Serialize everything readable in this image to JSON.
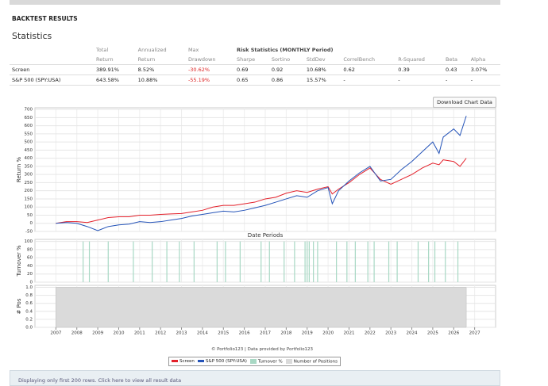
{
  "header": {
    "title": "BACKTEST RESULTS",
    "section": "Statistics"
  },
  "table": {
    "group_header": [
      "Total",
      "Annualized",
      "Max",
      "Risk Statistics (MONTHLY Period)"
    ],
    "header": [
      "Return",
      "Return",
      "Drawdown",
      "Sharpe",
      "Sortino",
      "StdDev",
      "CorrelBench",
      "R-Squared",
      "Beta",
      "Alpha"
    ],
    "rows": [
      [
        "Screen",
        "389.91%",
        "8.52%",
        "-30.62%",
        "0.69",
        "0.92",
        "10.68%",
        "0.62",
        "0.39",
        "0.43",
        "3.07%"
      ],
      [
        "S&P 500 (SPY:USA)",
        "643.58%",
        "10.88%",
        "-55.19%",
        "0.65",
        "0.86",
        "15.57%",
        "-",
        "-",
        "-",
        "-"
      ]
    ]
  },
  "button": "Download Chart Data",
  "chart_data": [
    {
      "type": "line",
      "ylabel": "Return %",
      "xlabel": "Date Periods",
      "xlim": [
        2006,
        2028
      ],
      "ylim": [
        -50,
        710
      ],
      "yticks": [
        -50,
        0,
        50,
        100,
        150,
        200,
        250,
        300,
        350,
        400,
        450,
        500,
        550,
        600,
        650,
        700
      ],
      "grid": true,
      "x": [
        2007,
        2007.5,
        2008,
        2008.5,
        2009,
        2009.5,
        2010,
        2010.5,
        2011,
        2011.5,
        2012,
        2012.5,
        2013,
        2013.5,
        2014,
        2014.5,
        2015,
        2015.5,
        2016,
        2016.5,
        2017,
        2017.5,
        2018,
        2018.5,
        2019,
        2019.5,
        2020,
        2020.2,
        2020.5,
        2021,
        2021.5,
        2022,
        2022.5,
        2023,
        2023.5,
        2024,
        2024.5,
        2025,
        2025.3,
        2025.5,
        2026,
        2026.3,
        2026.6
      ],
      "series": [
        {
          "name": "Screen",
          "color": "#e3202a",
          "values": [
            0,
            10,
            10,
            5,
            20,
            35,
            40,
            40,
            50,
            50,
            55,
            58,
            60,
            70,
            80,
            100,
            110,
            110,
            120,
            130,
            150,
            160,
            185,
            200,
            190,
            210,
            225,
            180,
            210,
            250,
            300,
            340,
            270,
            240,
            270,
            300,
            340,
            370,
            360,
            390,
            380,
            350,
            400
          ]
        },
        {
          "name": "S&P 500 (SPY:USA)",
          "color": "#2453b8",
          "values": [
            0,
            5,
            0,
            -20,
            -45,
            -20,
            -10,
            -5,
            10,
            5,
            10,
            20,
            30,
            45,
            55,
            65,
            75,
            70,
            80,
            95,
            110,
            130,
            150,
            170,
            160,
            200,
            220,
            120,
            200,
            260,
            310,
            350,
            260,
            270,
            330,
            380,
            440,
            500,
            430,
            530,
            580,
            540,
            660
          ]
        }
      ]
    },
    {
      "type": "bar",
      "ylabel": "Turnover %",
      "xlim": [
        2006,
        2028
      ],
      "ylim": [
        0,
        105
      ],
      "yticks": [
        0,
        20,
        40,
        60,
        80,
        100
      ],
      "grid": true,
      "x": [
        2008.3,
        2008.6,
        2009.5,
        2010.7,
        2011.6,
        2012.3,
        2012.9,
        2013.6,
        2014.7,
        2015.1,
        2015.8,
        2016.8,
        2017.2,
        2017.9,
        2018.4,
        2018.9,
        2019.0,
        2019.1,
        2019.3,
        2019.5,
        2020.4,
        2020.9,
        2021.3,
        2021.9,
        2022.2,
        2022.9,
        2023.3,
        2024.3,
        2024.8,
        2025.1,
        2025.6,
        2026.2
      ],
      "series": [
        {
          "name": "Turnover %",
          "color": "#a8d8c4",
          "values": [
            100,
            100,
            100,
            100,
            100,
            100,
            100,
            100,
            100,
            100,
            100,
            100,
            100,
            100,
            100,
            100,
            100,
            100,
            100,
            100,
            100,
            100,
            100,
            100,
            100,
            100,
            100,
            100,
            100,
            100,
            100,
            100
          ]
        }
      ]
    },
    {
      "type": "area",
      "ylabel": "# Pos",
      "xlim": [
        2006,
        2028
      ],
      "ylim": [
        0,
        1.05
      ],
      "yticks": [
        {
          "value": 0,
          "label": "0.0"
        },
        {
          "value": 0.2,
          "label": "0.2"
        },
        {
          "value": 0.4,
          "label": "0.4"
        },
        {
          "value": 0.6,
          "label": "0.6"
        },
        {
          "value": 0.8,
          "label": "0.8"
        },
        {
          "value": 1,
          "label": "1.0"
        }
      ],
      "xticks": [
        2007,
        2008,
        2009,
        2010,
        2011,
        2012,
        2013,
        2014,
        2015,
        2016,
        2017,
        2018,
        2019,
        2020,
        2021,
        2022,
        2023,
        2024,
        2025,
        2026,
        2027
      ],
      "grid": true,
      "x": [
        2007,
        2026.6
      ],
      "series": [
        {
          "name": "Number of Positions",
          "color": "#dadada",
          "values": [
            1,
            1
          ]
        }
      ]
    }
  ],
  "footer": {
    "credit": "© Portfolio123 | Data provided by Portfolio123",
    "notice": "Displaying only first 200 rows. Click here to view all result data"
  }
}
